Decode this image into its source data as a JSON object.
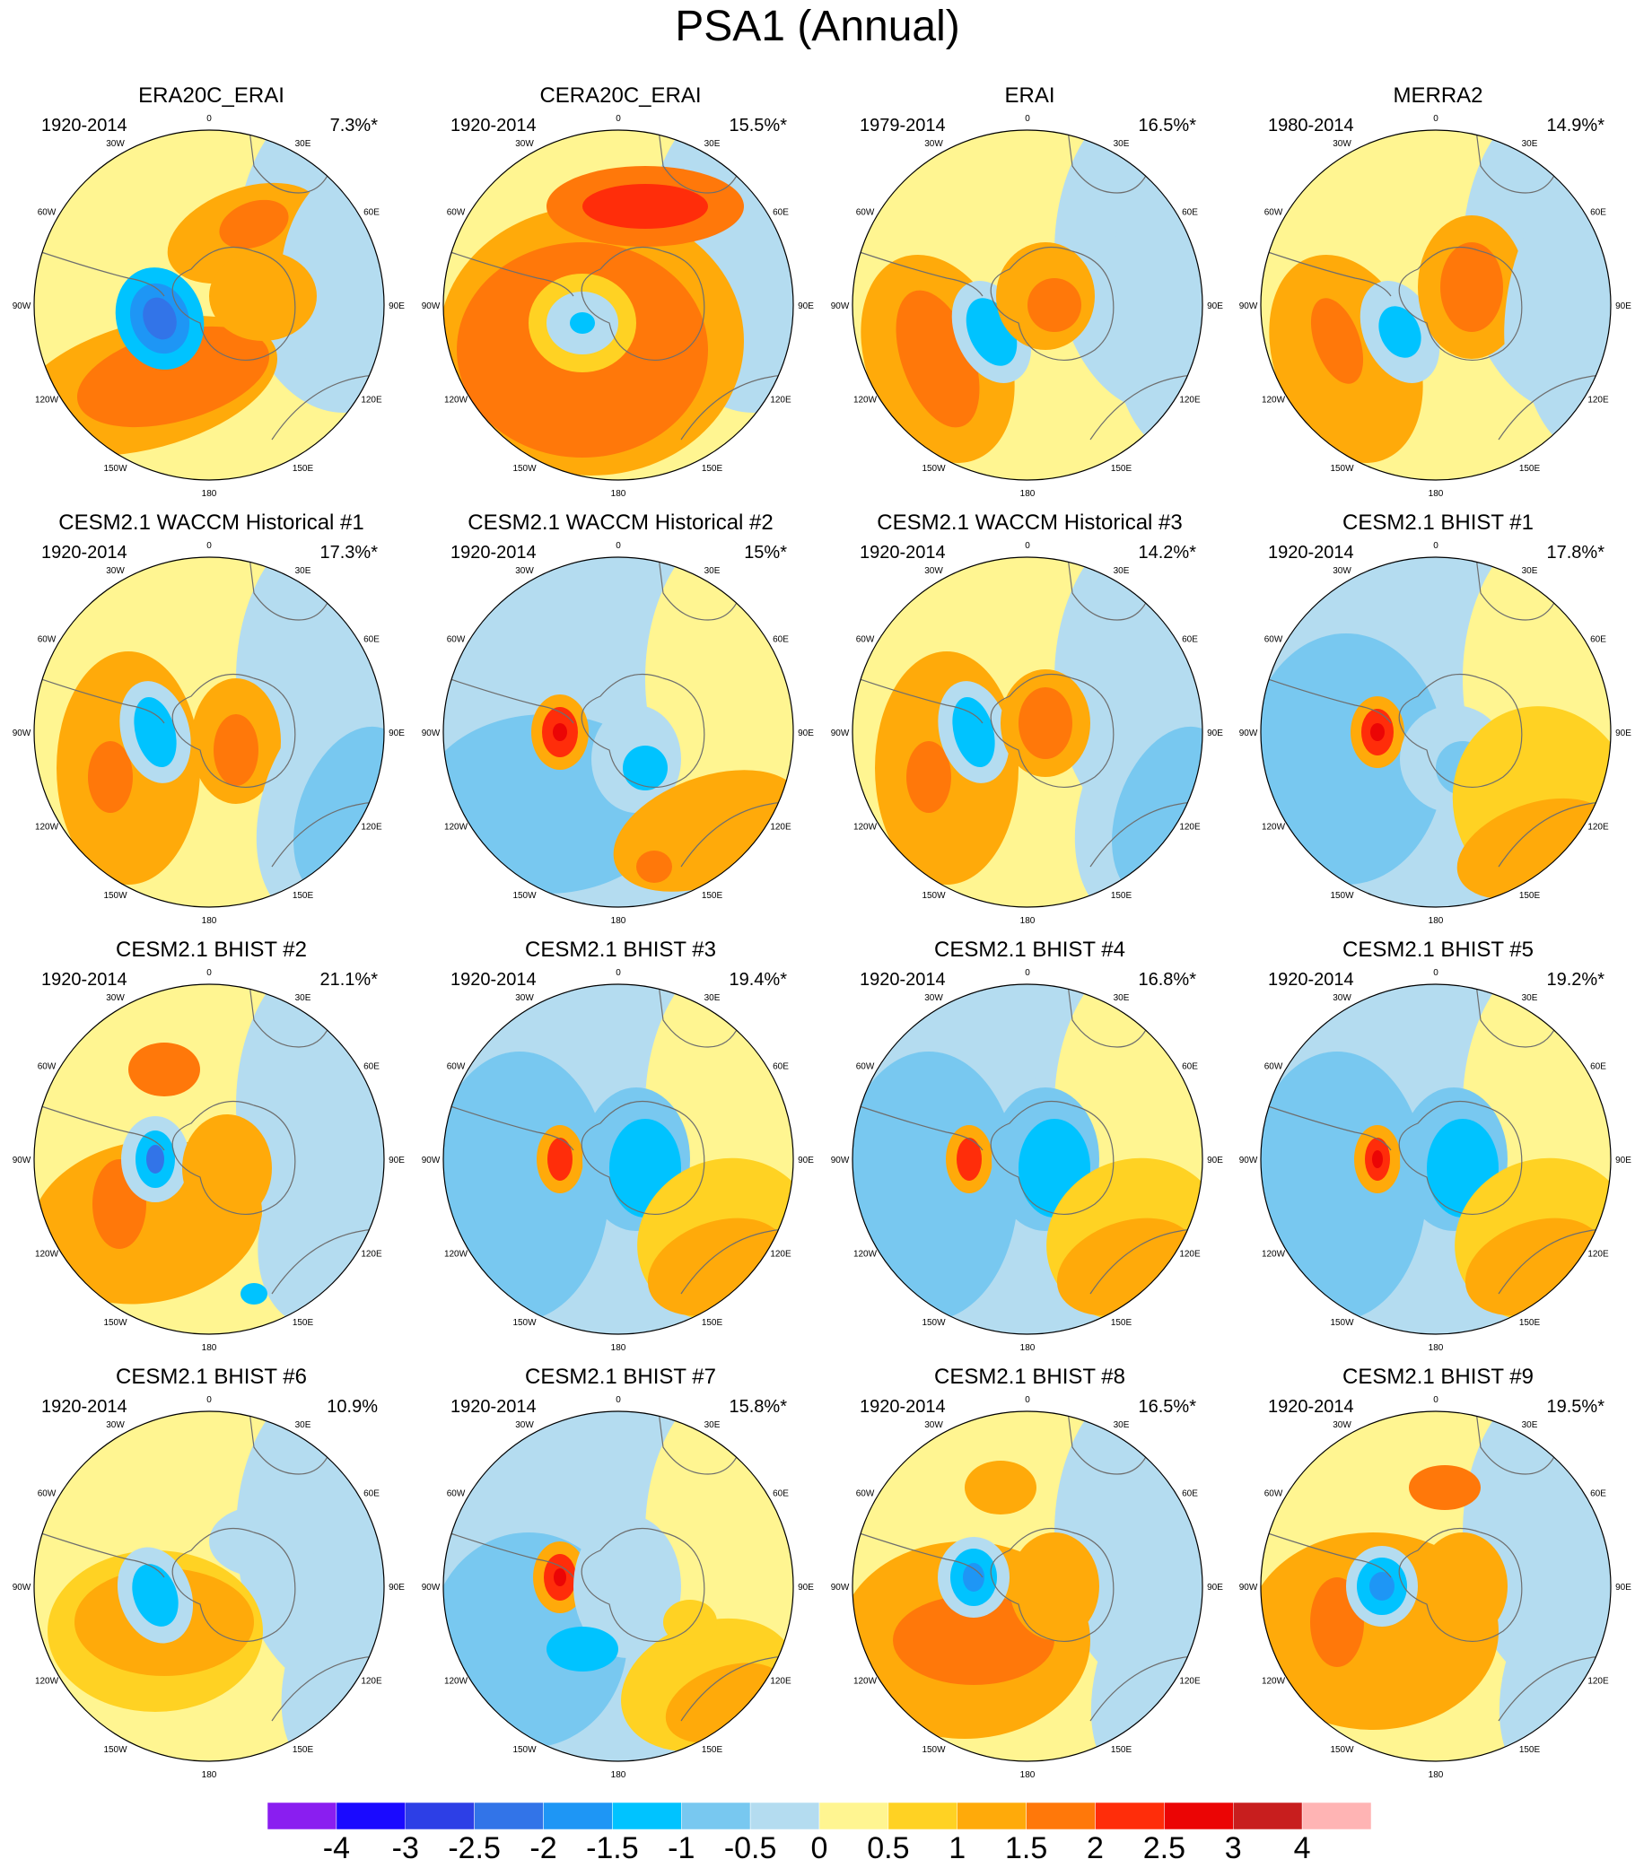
{
  "title": "PSA1 (Annual)",
  "lon_labels": [
    "0",
    "30E",
    "60E",
    "90E",
    "120E",
    "150E",
    "180",
    "150W",
    "120W",
    "90W",
    "60W",
    "30W"
  ],
  "chart_data": {
    "type": "polar contour map grid",
    "variable": "PSA1 regression pattern",
    "colorbar": {
      "levels": [
        "-4",
        "-3",
        "-2.5",
        "-2",
        "-1.5",
        "-1",
        "-0.5",
        "0",
        "0.5",
        "1",
        "1.5",
        "2",
        "2.5",
        "3",
        "4"
      ],
      "colors": [
        "#8a1ef0",
        "#1a0aff",
        "#2d3fe6",
        "#3274e8",
        "#1e96f5",
        "#00c3ff",
        "#78c8f0",
        "#b4dcf0",
        "#fff591",
        "#ffd223",
        "#ffaa0a",
        "#ff780a",
        "#ff2d0a",
        "#eb0505",
        "#c81e1e",
        "#ffb4b4"
      ]
    },
    "panels": [
      {
        "title": "ERA20C_ERAI",
        "years": "1920-2014",
        "variance": "7.3%*"
      },
      {
        "title": "CERA20C_ERAI",
        "years": "1920-2014",
        "variance": "15.5%*"
      },
      {
        "title": "ERAI",
        "years": "1979-2014",
        "variance": "16.5%*"
      },
      {
        "title": "MERRA2",
        "years": "1980-2014",
        "variance": "14.9%*"
      },
      {
        "title": "CESM2.1 WACCM Historical #1",
        "years": "1920-2014",
        "variance": "17.3%*"
      },
      {
        "title": "CESM2.1 WACCM Historical #2",
        "years": "1920-2014",
        "variance": "15%*"
      },
      {
        "title": "CESM2.1 WACCM Historical #3",
        "years": "1920-2014",
        "variance": "14.2%*"
      },
      {
        "title": "CESM2.1 BHIST #1",
        "years": "1920-2014",
        "variance": "17.8%*"
      },
      {
        "title": "CESM2.1 BHIST #2",
        "years": "1920-2014",
        "variance": "21.1%*"
      },
      {
        "title": "CESM2.1 BHIST #3",
        "years": "1920-2014",
        "variance": "19.4%*"
      },
      {
        "title": "CESM2.1 BHIST #4",
        "years": "1920-2014",
        "variance": "16.8%*"
      },
      {
        "title": "CESM2.1 BHIST #5",
        "years": "1920-2014",
        "variance": "19.2%*"
      },
      {
        "title": "CESM2.1 BHIST #6",
        "years": "1920-2014",
        "variance": "10.9%"
      },
      {
        "title": "CESM2.1 BHIST #7",
        "years": "1920-2014",
        "variance": "15.8%*"
      },
      {
        "title": "CESM2.1 BHIST #8",
        "years": "1920-2014",
        "variance": "16.5%*"
      },
      {
        "title": "CESM2.1 BHIST #9",
        "years": "1920-2014",
        "variance": "19.5%*"
      }
    ]
  }
}
